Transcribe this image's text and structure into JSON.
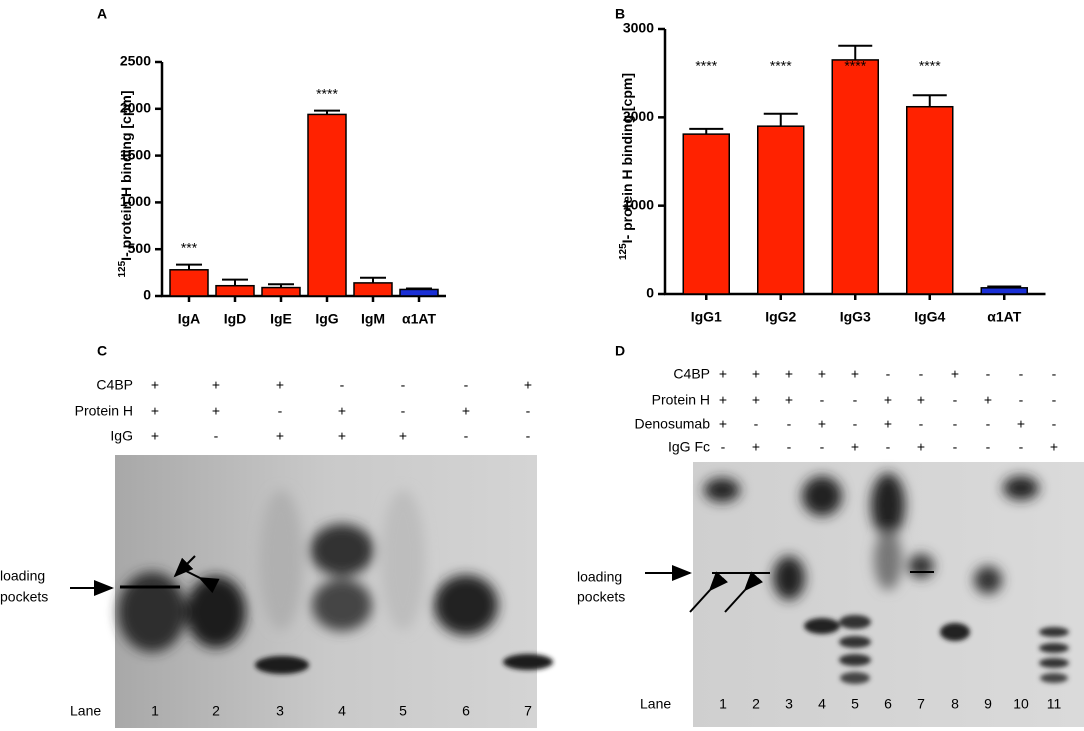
{
  "chart_data": [
    {
      "type": "bar",
      "panel": "A",
      "ylabel_sup": "125",
      "ylabel": "I- protein H binding [cpm]",
      "categories": [
        "IgA",
        "IgD",
        "IgE",
        "IgG",
        "IgM",
        "α1AT"
      ],
      "values": [
        280,
        110,
        90,
        1940,
        140,
        70
      ],
      "errors": [
        55,
        65,
        35,
        40,
        55,
        10
      ],
      "colors": [
        "#ff2200",
        "#ff2200",
        "#ff2200",
        "#ff2200",
        "#ff2200",
        "#1a2fd6"
      ],
      "annotations": [
        "***",
        null,
        null,
        "****",
        null,
        null
      ],
      "ylim": [
        0,
        2500
      ],
      "yticks": [
        0,
        500,
        1000,
        1500,
        2000,
        2500
      ]
    },
    {
      "type": "bar",
      "panel": "B",
      "ylabel_sup": "125",
      "ylabel": "I- protein H binding [cpm]",
      "categories": [
        "IgG1",
        "IgG2",
        "IgG3",
        "IgG4",
        "α1AT"
      ],
      "values": [
        1810,
        1900,
        2650,
        2120,
        70
      ],
      "errors": [
        60,
        140,
        160,
        130,
        15
      ],
      "colors": [
        "#ff2200",
        "#ff2200",
        "#ff2200",
        "#ff2200",
        "#1a2fd6"
      ],
      "annotations": [
        "****",
        "****",
        "****",
        "****",
        null
      ],
      "ylim": [
        0,
        3000
      ],
      "yticks": [
        0,
        1000,
        2000,
        3000
      ]
    }
  ],
  "gels": [
    {
      "panel": "C",
      "pointer": [
        "loading",
        "pockets"
      ],
      "lane_label": "Lane",
      "rows": [
        {
          "label": "C4BP",
          "signs": [
            "+",
            "+",
            "+",
            "-",
            "-",
            "-",
            "+"
          ]
        },
        {
          "label": "Protein H",
          "signs": [
            "+",
            "+",
            "-",
            "+",
            "-",
            "+",
            "-"
          ]
        },
        {
          "label": "IgG",
          "signs": [
            "+",
            "-",
            "+",
            "+",
            "+",
            "-",
            "-"
          ]
        }
      ],
      "lanes": [
        "1",
        "2",
        "3",
        "4",
        "5",
        "6",
        "7"
      ]
    },
    {
      "panel": "D",
      "pointer": [
        "loading",
        "pockets"
      ],
      "lane_label": "Lane",
      "rows": [
        {
          "label": "C4BP",
          "signs": [
            "+",
            "+",
            "+",
            "+",
            "+",
            "-",
            "-",
            "+",
            "-",
            "-",
            "-"
          ]
        },
        {
          "label": "Protein H",
          "signs": [
            "+",
            "+",
            "+",
            "-",
            "-",
            "+",
            "+",
            "-",
            "+",
            "-",
            "-"
          ]
        },
        {
          "label": "Denosumab",
          "signs": [
            "+",
            "-",
            "-",
            "+",
            "-",
            "+",
            "-",
            "-",
            "-",
            "+",
            "-"
          ]
        },
        {
          "label": "IgG Fc",
          "signs": [
            "-",
            "+",
            "-",
            "-",
            "+",
            "-",
            "+",
            "-",
            "-",
            "-",
            "+"
          ]
        }
      ],
      "lanes": [
        "1",
        "2",
        "3",
        "4",
        "5",
        "6",
        "7",
        "8",
        "9",
        "10",
        "11"
      ]
    }
  ]
}
